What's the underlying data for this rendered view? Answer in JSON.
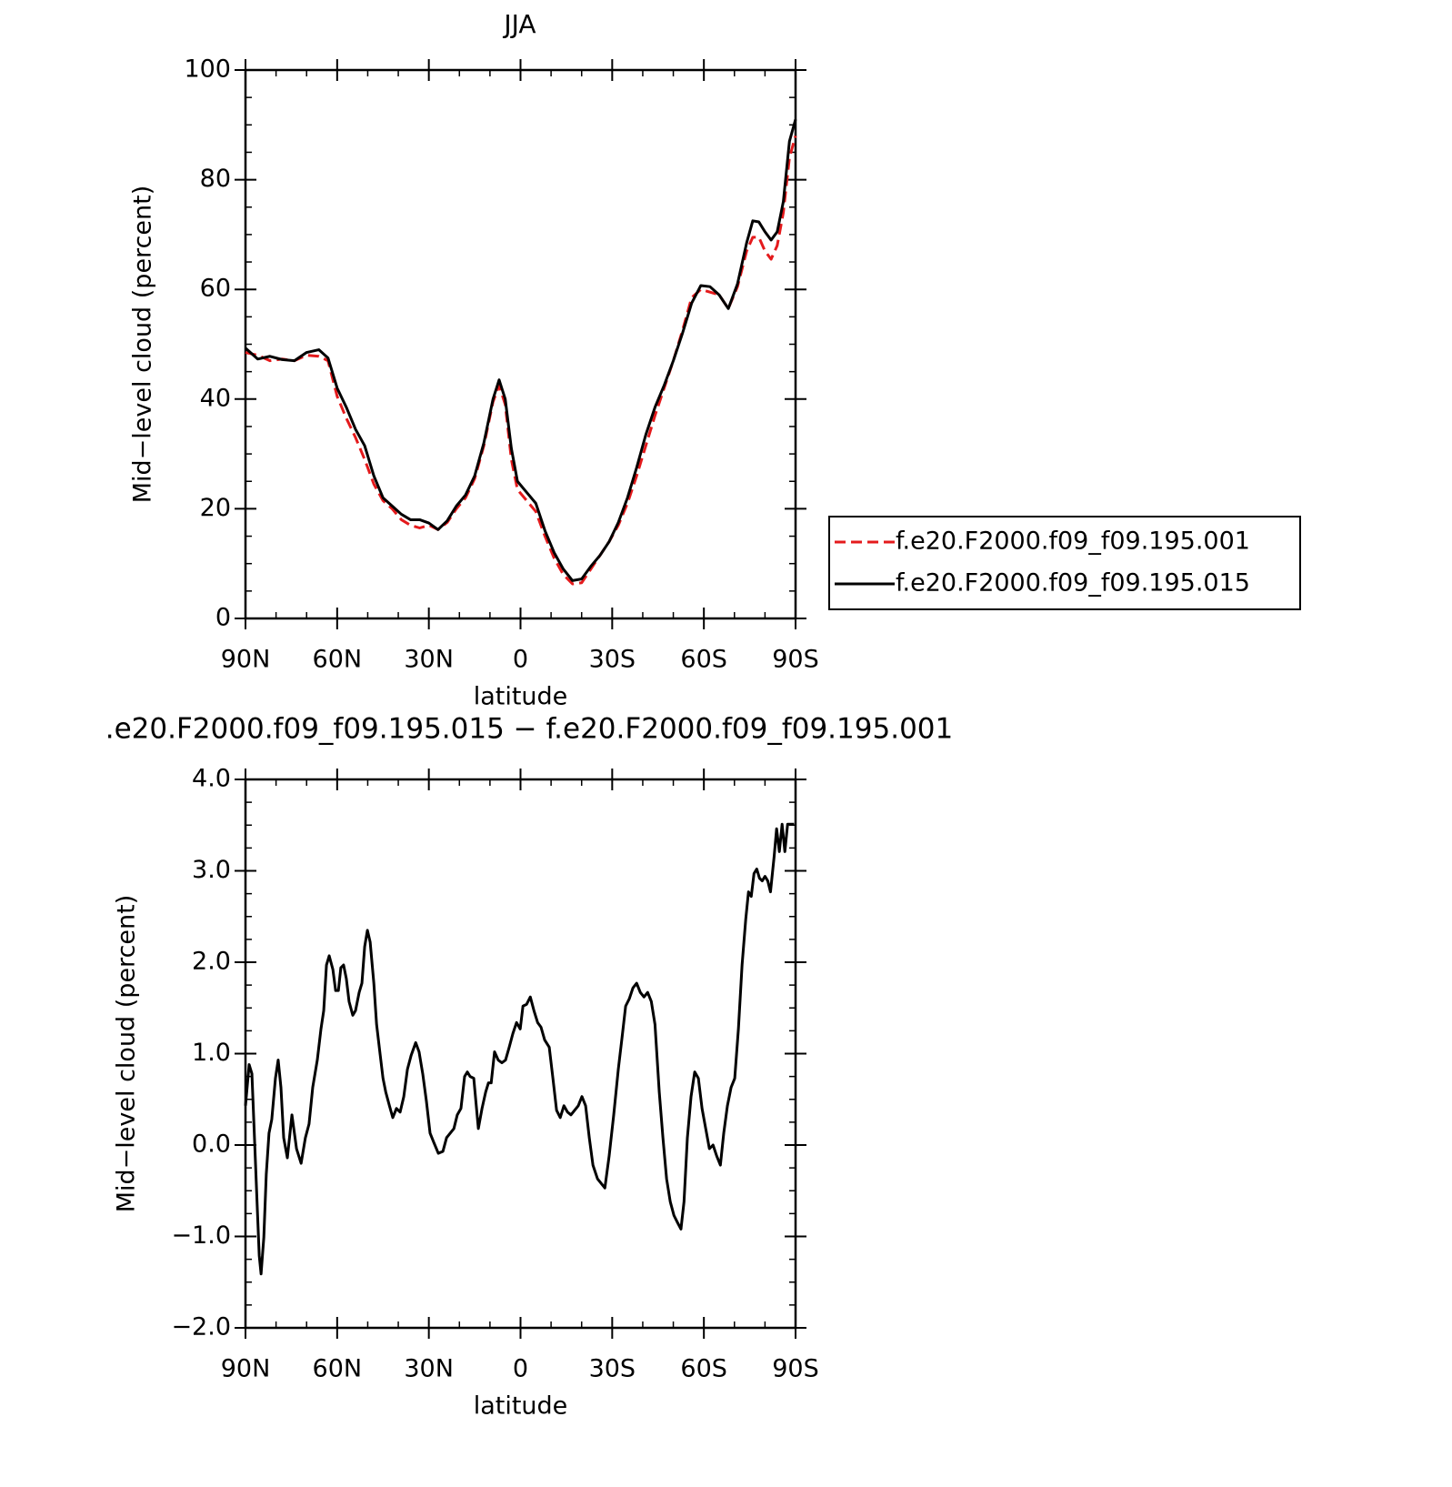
{
  "chart_data": [
    {
      "type": "line",
      "title": "JJA",
      "xlabel": "latitude",
      "ylabel": "Mid−level cloud (percent)",
      "xlim": [
        90,
        -90
      ],
      "xticks": [
        {
          "value": 90,
          "label": "90N"
        },
        {
          "value": 60,
          "label": "60N"
        },
        {
          "value": 30,
          "label": "30N"
        },
        0,
        {
          "value": -30,
          "label": "30S"
        },
        {
          "value": -60,
          "label": "60S"
        },
        {
          "value": -90,
          "label": "90S"
        }
      ],
      "ylim": [
        0,
        100
      ],
      "yticks": [
        0,
        20,
        40,
        60,
        80,
        100
      ],
      "legend": "right",
      "x": [
        90,
        86,
        82,
        78,
        74,
        70,
        66,
        63,
        60,
        57,
        54,
        51,
        48,
        45,
        42,
        39,
        36,
        33,
        30,
        27,
        24,
        21,
        18,
        15,
        12,
        9,
        7,
        5,
        3,
        1,
        -2,
        -5,
        -8,
        -11,
        -14,
        -17,
        -20,
        -23,
        -26,
        -29,
        -32,
        -35,
        -38,
        -41,
        -44,
        -47,
        -50,
        -53,
        -56,
        -59,
        -62,
        -65,
        -68,
        -71,
        -74,
        -76,
        -78,
        -80,
        -82,
        -84,
        -86,
        -88,
        -90
      ],
      "series": [
        {
          "name": "f.e20.F2000.f09_f09.195.001",
          "color": "#e41a1c",
          "line_style": "dashed",
          "values": [
            48.5,
            48,
            47,
            47.3,
            47,
            48,
            47.8,
            47,
            40.5,
            36.5,
            33,
            29,
            24.5,
            21.5,
            20,
            18,
            17,
            16.5,
            17,
            16.2,
            17.5,
            20,
            22,
            25.5,
            31.5,
            39.5,
            42.5,
            39,
            29,
            23.5,
            21.5,
            19.5,
            15,
            11,
            8,
            6.3,
            6.5,
            9,
            11.5,
            14,
            17,
            21,
            26,
            31.5,
            37,
            42,
            47,
            52.5,
            58.5,
            60,
            59.5,
            59,
            56.5,
            60.5,
            67,
            69.5,
            69.5,
            67,
            65.5,
            68,
            74,
            84,
            88
          ]
        },
        {
          "name": "f.e20.F2000.f09_f09.195.015",
          "color": "#000000",
          "line_style": "solid",
          "values": [
            49.3,
            47.3,
            47.8,
            47.2,
            47,
            48.5,
            49,
            47.5,
            42,
            38.5,
            34.5,
            31.5,
            26,
            22,
            20.5,
            19,
            18,
            18,
            17.4,
            16.2,
            17.8,
            20.5,
            22.5,
            26,
            32,
            40,
            43.5,
            40,
            31,
            25,
            23,
            21,
            16,
            12,
            9,
            6.9,
            7.2,
            9.5,
            11.5,
            14,
            17.5,
            22,
            27.5,
            33.5,
            38.5,
            42.5,
            47,
            52,
            57.5,
            60.7,
            60.5,
            59,
            56.5,
            61,
            68.5,
            72.5,
            72.3,
            70.5,
            69,
            70.5,
            76,
            87,
            91
          ]
        }
      ]
    },
    {
      "type": "line",
      "title": ".e20.F2000.f09_f09.195.015 − f.e20.F2000.f09_f09.195.001",
      "xlabel": "latitude",
      "ylabel": "Mid−level cloud (percent)",
      "xlim": [
        90,
        -90
      ],
      "xticks": [
        {
          "value": 90,
          "label": "90N"
        },
        {
          "value": 60,
          "label": "60N"
        },
        {
          "value": 30,
          "label": "30N"
        },
        0,
        {
          "value": -30,
          "label": "30S"
        },
        {
          "value": -60,
          "label": "60S"
        },
        {
          "value": -90,
          "label": "90S"
        }
      ],
      "ylim": [
        -2,
        4
      ],
      "yticks": [
        {
          "value": -2,
          "label": "−2.0"
        },
        {
          "value": -1,
          "label": "−1.0"
        },
        {
          "value": 0,
          "label": "0.0"
        },
        {
          "value": 1,
          "label": "1.0"
        },
        {
          "value": 2,
          "label": "2.0"
        },
        {
          "value": 3,
          "label": "3.0"
        },
        {
          "value": 4,
          "label": "4.0"
        }
      ],
      "x": [
        90,
        88.8,
        87.9,
        86.1,
        85.5,
        84.9,
        84,
        83.2,
        82.3,
        81.4,
        80.2,
        79.3,
        78.4,
        77.5,
        76.3,
        74.8,
        73.3,
        71.8,
        70.4,
        69.2,
        68,
        66.5,
        65.3,
        64.4,
        63.5,
        62.6,
        61.4,
        60.5,
        59.6,
        58.8,
        57.9,
        57,
        56.1,
        54.9,
        54,
        52.8,
        51.9,
        51,
        50.1,
        49.2,
        48,
        47.1,
        45.9,
        45,
        44.1,
        42.9,
        41.8,
        40.6,
        39.4,
        38.2,
        37,
        35.8,
        34.3,
        33.2,
        32,
        30.8,
        29.6,
        28.4,
        26.9,
        25.4,
        24.2,
        23,
        21.8,
        20.7,
        19.5,
        18.3,
        17.4,
        16.5,
        15.3,
        13.8,
        12.6,
        11.4,
        10.5,
        9.6,
        8.5,
        7.3,
        6.1,
        4.9,
        3.7,
        2.5,
        1.3,
        0.1,
        -0.8,
        -2,
        -3.2,
        -4.4,
        -5.6,
        -6.7,
        -7.9,
        -9.4,
        -10.6,
        -11.8,
        -13,
        -14.2,
        -15.4,
        -16.5,
        -17.7,
        -18.9,
        -20.1,
        -21.3,
        -22.5,
        -23.7,
        -25.2,
        -26.4,
        -27.6,
        -29,
        -30.5,
        -32,
        -33.2,
        -34.4,
        -35.6,
        -36.8,
        -38,
        -39.2,
        -40.4,
        -41.6,
        -42.8,
        -44,
        -45.4,
        -46.6,
        -47.8,
        -49,
        -50.2,
        -51.4,
        -52.5,
        -53.5,
        -54.6,
        -55.8,
        -57,
        -58.2,
        -59.4,
        -60.6,
        -61.8,
        -63,
        -64.2,
        -65.4,
        -66.5,
        -67.7,
        -68.9,
        -70.1,
        -71.3,
        -72.5,
        -73.7,
        -74.6,
        -75.5,
        -76.4,
        -77.3,
        -78.2,
        -79.1,
        -80,
        -80.9,
        -81.8,
        -83,
        -83.8,
        -84.7,
        -85.6,
        -86.5,
        -87.4,
        -88.6,
        -89.5
      ],
      "series": [
        {
          "color": "#000000",
          "line_style": "solid",
          "values": [
            0.43,
            0.88,
            0.78,
            -0.72,
            -1.21,
            -1.41,
            -1.01,
            -0.32,
            0.13,
            0.28,
            0.73,
            0.93,
            0.63,
            0.08,
            -0.14,
            0.33,
            -0.04,
            -0.2,
            0.08,
            0.23,
            0.63,
            0.93,
            1.27,
            1.47,
            1.97,
            2.07,
            1.92,
            1.69,
            1.69,
            1.94,
            1.97,
            1.82,
            1.57,
            1.42,
            1.47,
            1.67,
            1.77,
            2.17,
            2.35,
            2.22,
            1.77,
            1.32,
            0.98,
            0.73,
            0.58,
            0.43,
            0.3,
            0.4,
            0.36,
            0.53,
            0.83,
            0.98,
            1.12,
            1.02,
            0.78,
            0.48,
            0.13,
            0.03,
            -0.09,
            -0.07,
            0.08,
            0.13,
            0.18,
            0.33,
            0.4,
            0.75,
            0.8,
            0.75,
            0.73,
            0.18,
            0.4,
            0.58,
            0.68,
            0.68,
            1.02,
            0.93,
            0.9,
            0.93,
            1.07,
            1.22,
            1.34,
            1.27,
            1.52,
            1.54,
            1.62,
            1.47,
            1.34,
            1.29,
            1.15,
            1.07,
            0.73,
            0.38,
            0.3,
            0.43,
            0.36,
            0.33,
            0.38,
            0.43,
            0.53,
            0.43,
            0.08,
            -0.22,
            -0.37,
            -0.42,
            -0.47,
            -0.12,
            0.33,
            0.83,
            1.17,
            1.52,
            1.6,
            1.72,
            1.77,
            1.67,
            1.62,
            1.67,
            1.57,
            1.32,
            0.58,
            0.08,
            -0.37,
            -0.62,
            -0.77,
            -0.85,
            -0.92,
            -0.62,
            0.08,
            0.53,
            0.8,
            0.73,
            0.4,
            0.18,
            -0.04,
            0,
            -0.12,
            -0.22,
            0.13,
            0.43,
            0.63,
            0.73,
            1.27,
            1.97,
            2.47,
            2.77,
            2.72,
            2.97,
            3.02,
            2.92,
            2.89,
            2.94,
            2.89,
            2.77,
            3.16,
            3.46,
            3.21,
            3.51,
            3.21,
            3.51,
            3.51,
            3.51
          ]
        }
      ]
    }
  ]
}
